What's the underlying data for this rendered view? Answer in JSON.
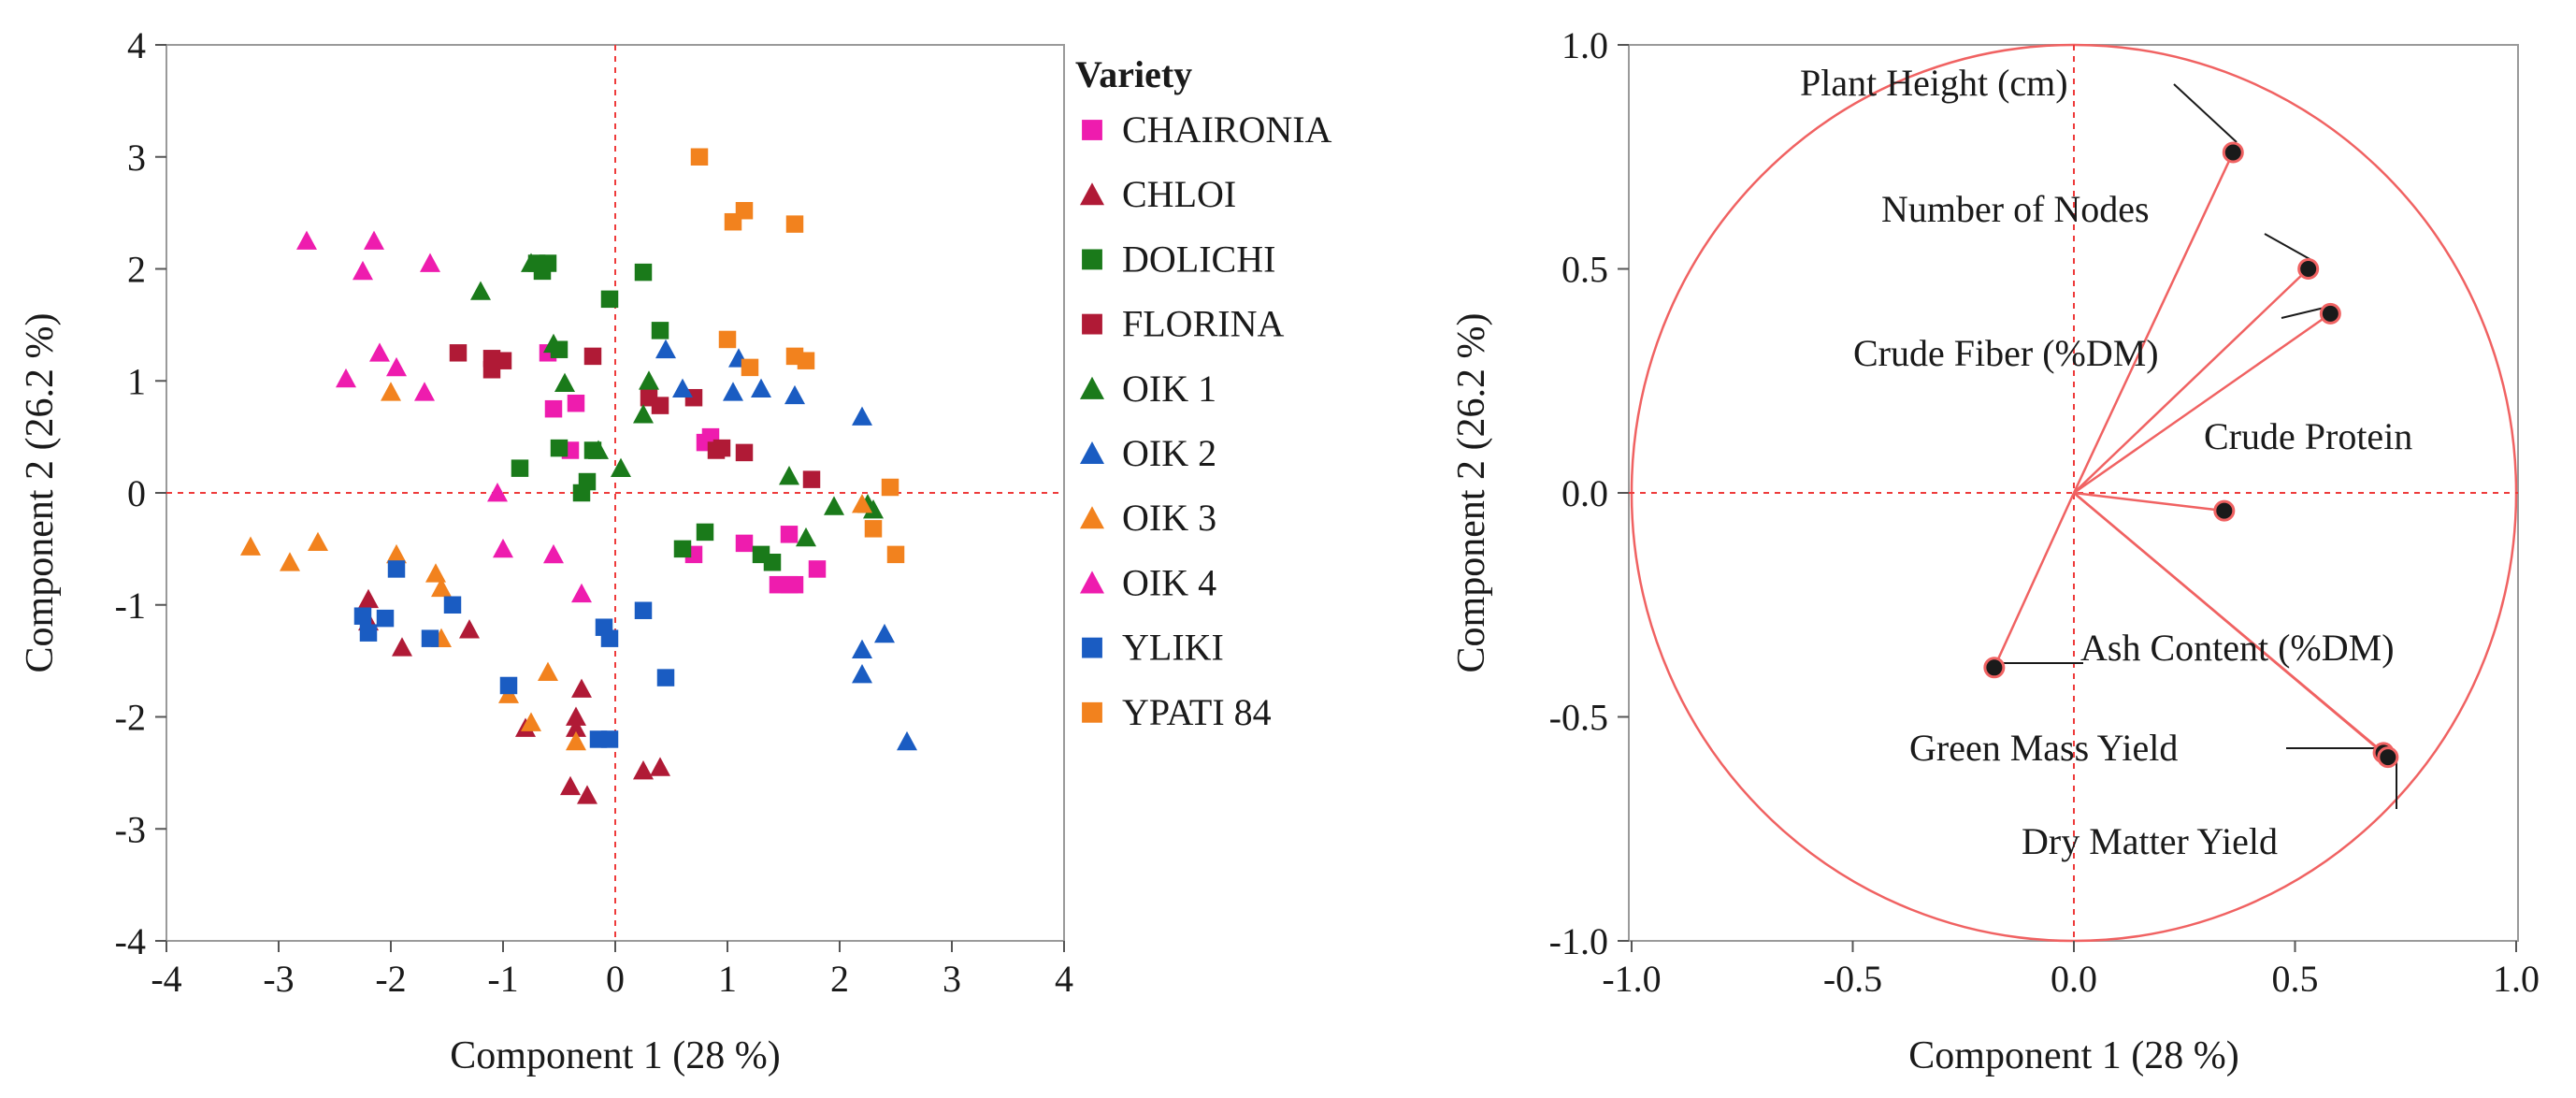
{
  "chart_data": [
    {
      "type": "scatter",
      "title": "",
      "xlabel": "Component 1  (28 %)",
      "ylabel": "Component 2  (26.2 %)",
      "xlim": [
        -4,
        4
      ],
      "ylim": [
        -4,
        4
      ],
      "xticks": [
        "-4",
        "-3",
        "-2",
        "-1",
        "0",
        "1",
        "2",
        "3",
        "4"
      ],
      "yticks": [
        "4",
        "3",
        "2",
        "1",
        "0",
        "-1",
        "-2",
        "-3",
        "-4"
      ],
      "reference_lines": {
        "x": 0,
        "y": 0
      },
      "legend": {
        "title": "Variety",
        "position": "right"
      },
      "series": [
        {
          "name": "CHAIRONIA",
          "marker": "square",
          "color": "#ee1cae",
          "points": [
            [
              -0.6,
              1.25
            ],
            [
              -0.55,
              0.75
            ],
            [
              -0.35,
              0.8
            ],
            [
              -0.4,
              0.38
            ],
            [
              0.8,
              0.45
            ],
            [
              0.85,
              0.5
            ],
            [
              0.7,
              -0.55
            ],
            [
              1.15,
              -0.45
            ],
            [
              1.45,
              -0.82
            ],
            [
              1.55,
              -0.82
            ],
            [
              1.6,
              -0.82
            ],
            [
              1.8,
              -0.68
            ],
            [
              1.55,
              -0.37
            ]
          ]
        },
        {
          "name": "CHLOI",
          "marker": "triangle",
          "color": "#b01a36",
          "points": [
            [
              -2.2,
              -0.95
            ],
            [
              -2.2,
              -1.15
            ],
            [
              -1.9,
              -1.38
            ],
            [
              -1.3,
              -1.22
            ],
            [
              -0.8,
              -2.1
            ],
            [
              -0.35,
              -2.0
            ],
            [
              -0.35,
              -2.1
            ],
            [
              -0.3,
              -1.75
            ],
            [
              -0.4,
              -2.62
            ],
            [
              -0.25,
              -2.7
            ],
            [
              0.25,
              -2.48
            ],
            [
              0.4,
              -2.45
            ]
          ]
        },
        {
          "name": "DOLICHI",
          "marker": "square",
          "color": "#1a7a1a",
          "points": [
            [
              -0.7,
              2.05
            ],
            [
              -0.6,
              2.05
            ],
            [
              -0.65,
              1.98
            ],
            [
              -0.05,
              1.73
            ],
            [
              0.25,
              1.97
            ],
            [
              0.4,
              1.45
            ],
            [
              -0.5,
              1.28
            ],
            [
              -0.5,
              0.4
            ],
            [
              -0.2,
              0.38
            ],
            [
              -0.85,
              0.22
            ],
            [
              -0.3,
              0.0
            ],
            [
              -0.25,
              0.1
            ],
            [
              0.6,
              -0.5
            ],
            [
              0.8,
              -0.35
            ],
            [
              1.3,
              -0.55
            ],
            [
              1.4,
              -0.62
            ]
          ]
        },
        {
          "name": "FLORINA",
          "marker": "square",
          "color": "#b01a36",
          "points": [
            [
              -1.4,
              1.25
            ],
            [
              -1.1,
              1.2
            ],
            [
              -1.0,
              1.18
            ],
            [
              -1.1,
              1.1
            ],
            [
              -0.2,
              1.22
            ],
            [
              0.3,
              0.85
            ],
            [
              0.4,
              0.78
            ],
            [
              0.7,
              0.85
            ],
            [
              0.9,
              0.38
            ],
            [
              0.95,
              0.4
            ],
            [
              1.15,
              0.36
            ],
            [
              1.75,
              0.12
            ]
          ]
        },
        {
          "name": "OIK 1",
          "marker": "triangle",
          "color": "#1a7a1a",
          "points": [
            [
              -1.2,
              1.8
            ],
            [
              -0.75,
              2.05
            ],
            [
              -0.55,
              1.33
            ],
            [
              -0.45,
              0.98
            ],
            [
              -0.15,
              0.38
            ],
            [
              0.05,
              0.22
            ],
            [
              0.25,
              0.7
            ],
            [
              0.3,
              1.0
            ],
            [
              1.55,
              0.15
            ],
            [
              1.7,
              -0.4
            ],
            [
              1.95,
              -0.12
            ],
            [
              2.25,
              -0.1
            ],
            [
              2.3,
              -0.15
            ]
          ]
        },
        {
          "name": "OIK 2",
          "marker": "triangle",
          "color": "#1a5cc2",
          "points": [
            [
              0.45,
              1.28
            ],
            [
              0.6,
              0.93
            ],
            [
              1.05,
              0.9
            ],
            [
              1.1,
              1.2
            ],
            [
              1.3,
              0.93
            ],
            [
              1.6,
              0.87
            ],
            [
              2.2,
              0.68
            ],
            [
              2.2,
              -1.4
            ],
            [
              2.2,
              -1.62
            ],
            [
              2.4,
              -1.26
            ],
            [
              2.6,
              -2.22
            ]
          ]
        },
        {
          "name": "OIK 3",
          "marker": "triangle",
          "color": "#f2821e",
          "points": [
            [
              -3.25,
              -0.48
            ],
            [
              -2.9,
              -0.62
            ],
            [
              -2.65,
              -0.44
            ],
            [
              -2.0,
              0.9
            ],
            [
              -1.95,
              -0.55
            ],
            [
              -1.6,
              -0.72
            ],
            [
              -1.55,
              -0.85
            ],
            [
              -1.55,
              -1.3
            ],
            [
              -0.95,
              -1.8
            ],
            [
              -0.75,
              -2.05
            ],
            [
              -0.6,
              -1.6
            ],
            [
              -0.35,
              -2.22
            ],
            [
              2.2,
              -0.1
            ]
          ]
        },
        {
          "name": "OIK 4",
          "marker": "triangle",
          "color": "#ee1cae",
          "points": [
            [
              -2.75,
              2.25
            ],
            [
              -2.15,
              2.25
            ],
            [
              -2.25,
              1.98
            ],
            [
              -1.65,
              2.05
            ],
            [
              -2.1,
              1.25
            ],
            [
              -1.95,
              1.12
            ],
            [
              -2.4,
              1.02
            ],
            [
              -1.7,
              0.9
            ],
            [
              -1.05,
              0.0
            ],
            [
              -1.0,
              -0.5
            ],
            [
              -0.55,
              -0.55
            ],
            [
              -0.3,
              -0.9
            ]
          ]
        },
        {
          "name": "YLIKI",
          "marker": "square",
          "color": "#1a5cc2",
          "points": [
            [
              -2.25,
              -1.1
            ],
            [
              -2.2,
              -1.25
            ],
            [
              -2.05,
              -1.12
            ],
            [
              -1.95,
              -0.68
            ],
            [
              -1.65,
              -1.3
            ],
            [
              -1.45,
              -1.0
            ],
            [
              -0.95,
              -1.72
            ],
            [
              -0.15,
              -2.2
            ],
            [
              -0.05,
              -2.2
            ],
            [
              -0.1,
              -1.2
            ],
            [
              -0.05,
              -1.3
            ],
            [
              0.25,
              -1.05
            ],
            [
              0.45,
              -1.65
            ]
          ]
        },
        {
          "name": "YPATI 84",
          "marker": "square",
          "color": "#f2821e",
          "points": [
            [
              0.75,
              3.0
            ],
            [
              1.05,
              2.42
            ],
            [
              1.15,
              2.52
            ],
            [
              1.6,
              2.4
            ],
            [
              1.0,
              1.37
            ],
            [
              1.2,
              1.12
            ],
            [
              1.6,
              1.22
            ],
            [
              1.7,
              1.18
            ],
            [
              2.45,
              0.05
            ],
            [
              2.3,
              -0.32
            ],
            [
              2.5,
              -0.55
            ]
          ]
        }
      ]
    },
    {
      "type": "scatter",
      "subtype": "loading-plot",
      "title": "",
      "xlabel": "Component 1  (28 %)",
      "ylabel": "Component 2  (26.2 %)",
      "xlim": [
        -1.0,
        1.0
      ],
      "ylim": [
        -1.0,
        1.0
      ],
      "xticks": [
        "-1.0",
        "-0.5",
        "0.0",
        "0.5",
        "1.0"
      ],
      "yticks": [
        "1.0",
        "0.5",
        "0.0",
        "-0.5",
        "-1.0"
      ],
      "reference_lines": {
        "x": 0,
        "y": 0
      },
      "circle_radius": 1.0,
      "colors": {
        "vector": "#f06262",
        "circle": "#f06262",
        "point": "#1a1a1a"
      },
      "loadings": [
        {
          "name": "Plant Height (cm)",
          "x": 0.36,
          "y": 0.76
        },
        {
          "name": "Number of Nodes",
          "x": 0.53,
          "y": 0.5
        },
        {
          "name": "Crude Fiber (%DM)",
          "x": 0.58,
          "y": 0.4
        },
        {
          "name": "Crude Protein",
          "x": 0.34,
          "y": -0.04
        },
        {
          "name": "Ash Content (%DM)",
          "x": -0.18,
          "y": -0.39
        },
        {
          "name": "Green Mass Yield",
          "x": 0.7,
          "y": -0.58
        },
        {
          "name": "Dry Matter Yield",
          "x": 0.71,
          "y": -0.59
        }
      ]
    }
  ]
}
